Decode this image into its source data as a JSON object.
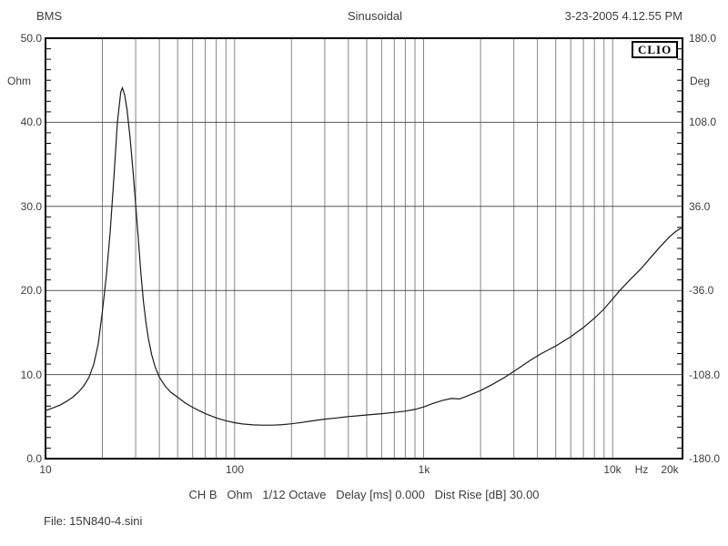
{
  "header": {
    "left": "BMS",
    "center": "Sinusoidal",
    "right": "3-23-2005 4.12.55 PM"
  },
  "logo": "CLIO",
  "footer": {
    "settings_line": "CH B   Ohm   1/12 Octave   Delay [ms] 0.000   Dist Rise [dB] 30.00",
    "file_line": "File: 15N840-4.sini"
  },
  "chart_data": {
    "type": "line",
    "title": "Sinusoidal",
    "x_scale": "log",
    "xlim": [
      10,
      23400
    ],
    "ylim_left": [
      0,
      50
    ],
    "ylim_right": [
      -180,
      180
    ],
    "ylabel_left": "Ohm",
    "ylabel_right": "Deg",
    "grid": true,
    "legend": "none",
    "x_gridlines": [
      20,
      30,
      40,
      50,
      60,
      70,
      80,
      90,
      100,
      200,
      300,
      400,
      500,
      600,
      700,
      800,
      900,
      1000,
      2000,
      3000,
      4000,
      5000,
      6000,
      7000,
      8000,
      9000,
      10000
    ],
    "y_gridlines": [
      10,
      20,
      30,
      40
    ],
    "x_ticks": [
      {
        "f": 10,
        "label": "10"
      },
      {
        "f": 100,
        "label": "100"
      },
      {
        "f": 1000,
        "label": "1k"
      },
      {
        "f": 10000,
        "label": "10k"
      },
      {
        "f": 14200,
        "label": "Hz"
      },
      {
        "f": 20000,
        "label": "20k"
      }
    ],
    "y_ticks_left": [
      {
        "v": 50,
        "label": "50.0"
      },
      {
        "v": 40,
        "label": "40.0"
      },
      {
        "v": 30,
        "label": "30.0"
      },
      {
        "v": 20,
        "label": "20.0"
      },
      {
        "v": 10,
        "label": "10.0"
      },
      {
        "v": 0,
        "label": "0.0"
      }
    ],
    "y_ticks_right": [
      {
        "v": 180,
        "label": "180.0"
      },
      {
        "v": 108,
        "label": "108.0"
      },
      {
        "v": 36,
        "label": "36.0"
      },
      {
        "v": -36,
        "label": "-36.0"
      },
      {
        "v": -108,
        "label": "-108.0"
      },
      {
        "v": -180,
        "label": "-180.0"
      }
    ],
    "colors": {
      "curve": "#1a1a1a",
      "grid_vertical": "#858585",
      "grid_horizontal": "#555555",
      "border": "#000000"
    },
    "series": [
      {
        "name": "impedance_ohm",
        "points": [
          [
            10,
            5.7
          ],
          [
            11,
            6.05
          ],
          [
            12,
            6.4
          ],
          [
            13,
            6.85
          ],
          [
            14,
            7.35
          ],
          [
            15,
            7.95
          ],
          [
            16,
            8.7
          ],
          [
            17,
            9.7
          ],
          [
            18,
            11.2
          ],
          [
            19,
            13.6
          ],
          [
            20,
            17.5
          ],
          [
            21,
            21.8
          ],
          [
            22,
            27
          ],
          [
            23,
            33.5
          ],
          [
            24,
            40
          ],
          [
            25,
            43.6
          ],
          [
            25.5,
            44.1
          ],
          [
            26.2,
            43.3
          ],
          [
            27,
            41.5
          ],
          [
            28,
            38.2
          ],
          [
            29,
            34.3
          ],
          [
            30,
            30.2
          ],
          [
            31,
            26
          ],
          [
            32,
            21.8
          ],
          [
            33,
            18.6
          ],
          [
            34,
            16.2
          ],
          [
            35,
            14.3
          ],
          [
            36.5,
            12.3
          ],
          [
            38,
            10.9
          ],
          [
            40,
            9.7
          ],
          [
            43,
            8.6
          ],
          [
            46,
            7.9
          ],
          [
            50,
            7.3
          ],
          [
            55,
            6.6
          ],
          [
            60,
            6.1
          ],
          [
            65,
            5.7
          ],
          [
            70,
            5.35
          ],
          [
            75,
            5.1
          ],
          [
            80,
            4.85
          ],
          [
            90,
            4.5
          ],
          [
            100,
            4.27
          ],
          [
            110,
            4.12
          ],
          [
            125,
            4.02
          ],
          [
            140,
            3.98
          ],
          [
            160,
            3.98
          ],
          [
            180,
            4.05
          ],
          [
            200,
            4.15
          ],
          [
            225,
            4.3
          ],
          [
            250,
            4.45
          ],
          [
            300,
            4.7
          ],
          [
            350,
            4.85
          ],
          [
            400,
            5.0
          ],
          [
            450,
            5.1
          ],
          [
            500,
            5.2
          ],
          [
            600,
            5.35
          ],
          [
            700,
            5.5
          ],
          [
            800,
            5.65
          ],
          [
            900,
            5.85
          ],
          [
            1000,
            6.15
          ],
          [
            1100,
            6.5
          ],
          [
            1250,
            6.9
          ],
          [
            1400,
            7.15
          ],
          [
            1550,
            7.1
          ],
          [
            1700,
            7.45
          ],
          [
            2000,
            8.1
          ],
          [
            2300,
            8.8
          ],
          [
            2700,
            9.7
          ],
          [
            3200,
            10.8
          ],
          [
            3700,
            11.75
          ],
          [
            4200,
            12.5
          ],
          [
            5000,
            13.4
          ],
          [
            6000,
            14.5
          ],
          [
            7000,
            15.6
          ],
          [
            8000,
            16.7
          ],
          [
            9000,
            17.8
          ],
          [
            10000,
            19.0
          ],
          [
            11000,
            20.1
          ],
          [
            12500,
            21.4
          ],
          [
            14000,
            22.5
          ],
          [
            16000,
            24.0
          ],
          [
            18000,
            25.3
          ],
          [
            20000,
            26.4
          ],
          [
            21500,
            27.0
          ],
          [
            23000,
            27.4
          ]
        ]
      }
    ]
  }
}
